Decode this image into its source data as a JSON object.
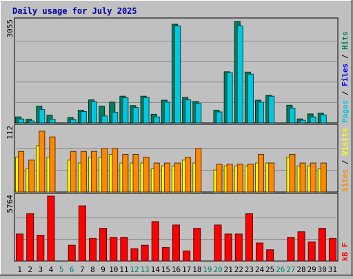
{
  "chart_data": {
    "type": "bar",
    "title": "Daily usage for July 2025",
    "categories": [
      "1",
      "2",
      "3",
      "4",
      "5",
      "6",
      "7",
      "8",
      "9",
      "10",
      "11",
      "12",
      "13",
      "14",
      "15",
      "16",
      "17",
      "18",
      "19",
      "20",
      "21",
      "22",
      "23",
      "24",
      "25",
      "26",
      "27",
      "28",
      "29",
      "30",
      "31"
    ],
    "weekend_days": [
      "5",
      "6",
      "12",
      "13",
      "19",
      "20",
      "26",
      "27"
    ],
    "panels": [
      {
        "id": "hits",
        "ymax_label": "3055",
        "ylim": [
          0,
          3055
        ],
        "ylabel_parts": [
          {
            "text": "Pages",
            "color": "#00c8e0"
          },
          {
            "text": " / ",
            "color": "#000000"
          },
          {
            "text": "Files",
            "color": "#0000ff"
          },
          {
            "text": " / ",
            "color": "#000000"
          },
          {
            "text": "Hits",
            "color": "#008060"
          }
        ],
        "series": [
          {
            "name": "Hits",
            "color": "#008060",
            "values": [
              180,
              110,
              500,
              230,
              0,
              160,
              380,
              690,
              500,
              620,
              800,
              520,
              800,
              260,
              680,
              2950,
              760,
              640,
              0,
              380,
              1530,
              3030,
              1520,
              680,
              820,
              0,
              530,
              120,
              270,
              290,
              0
            ]
          },
          {
            "name": "Files",
            "color": "#00c8e0",
            "values": [
              120,
              60,
              400,
              110,
              0,
              100,
              340,
              630,
              210,
              320,
              750,
              460,
              760,
              180,
              620,
              2900,
              690,
              580,
              0,
              330,
              1500,
              2900,
              1460,
              620,
              800,
              0,
              440,
              80,
              180,
              240,
              0
            ]
          }
        ]
      },
      {
        "id": "visits",
        "ymax_label": "112",
        "ylim": [
          0,
          112
        ],
        "ylabel_parts": [
          {
            "text": "Sites",
            "color": "#ff8800"
          },
          {
            "text": " / ",
            "color": "#000000"
          },
          {
            "text": "Visits",
            "color": "#ffff00"
          }
        ],
        "series": [
          {
            "name": "Visits",
            "color": "#ffff00",
            "values": [
              60,
              40,
              80,
              60,
              0,
              55,
              50,
              60,
              60,
              65,
              50,
              50,
              50,
              40,
              45,
              45,
              55,
              50,
              0,
              38,
              45,
              45,
              45,
              50,
              50,
              0,
              60,
              45,
              45,
              40,
              0
            ]
          },
          {
            "name": "Sites",
            "color": "#ff8800",
            "values": [
              70,
              55,
              105,
              95,
              0,
              70,
              70,
              70,
              75,
              75,
              65,
              65,
              60,
              50,
              50,
              50,
              60,
              75,
              0,
              48,
              48,
              48,
              48,
              65,
              50,
              0,
              65,
              50,
              50,
              50,
              0
            ]
          }
        ]
      },
      {
        "id": "kbytes",
        "ymax_label": "5764",
        "ylim": [
          0,
          5764
        ],
        "ylabel_parts": [
          {
            "text": "kB F",
            "color": "#ff0000"
          }
        ],
        "series": [
          {
            "name": "kB F",
            "color": "#ff0000",
            "values": [
              2400,
              4200,
              2300,
              5764,
              0,
              1400,
              4900,
              2000,
              2900,
              2100,
              2100,
              1100,
              1400,
              3500,
              1200,
              3200,
              900,
              2900,
              0,
              3200,
              2400,
              2400,
              4200,
              1600,
              1000,
              0,
              2100,
              2600,
              1700,
              2900,
              2000
            ]
          }
        ]
      }
    ]
  }
}
